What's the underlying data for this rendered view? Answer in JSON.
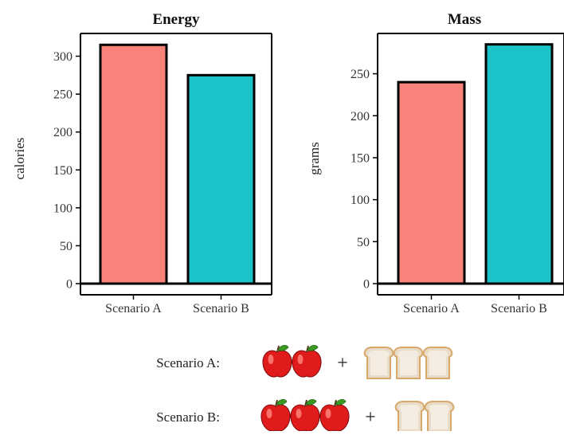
{
  "chart_data": [
    {
      "type": "bar",
      "title": "Energy",
      "xlabel": "",
      "ylabel": "calories",
      "categories": [
        "Scenario A",
        "Scenario B"
      ],
      "values": [
        315,
        275
      ],
      "colors": [
        "#f8837a",
        "#1bc3c9"
      ],
      "yticks": [
        0,
        50,
        100,
        150,
        200,
        250,
        300
      ],
      "ylim": [
        0,
        330
      ]
    },
    {
      "type": "bar",
      "title": "Mass",
      "xlabel": "",
      "ylabel": "grams",
      "categories": [
        "Scenario A",
        "Scenario B"
      ],
      "values": [
        240,
        285
      ],
      "colors": [
        "#f8837a",
        "#1bc3c9"
      ],
      "yticks": [
        0,
        50,
        100,
        150,
        200,
        250
      ],
      "ylim": [
        0,
        298
      ]
    }
  ],
  "scenarios": [
    {
      "label": "Scenario A:",
      "apples": 2,
      "bread_slices": 3,
      "plus": "+"
    },
    {
      "label": "Scenario B:",
      "apples": 3,
      "bread_slices": 2,
      "plus": "+"
    }
  ],
  "icons": {
    "apple": "apple-icon",
    "bread": "bread-slice-icon"
  }
}
